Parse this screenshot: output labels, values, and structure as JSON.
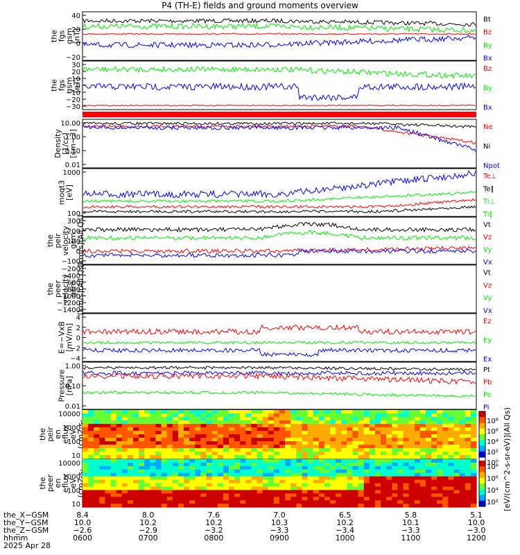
{
  "title": "P4 (TH-E) fields and ground moments overview",
  "colors": {
    "black": "#000000",
    "red": "#ff0000",
    "green": "#00ee00",
    "blue": "#0000ff"
  },
  "chart_data": [
    {
      "type": "line",
      "ylabel": [
        "the",
        "fgs",
        "gsm",
        "[nT]"
      ],
      "yticks": [
        "40",
        "20",
        "0",
        "−20"
      ],
      "series": [
        {
          "name": "Bt",
          "color": "black"
        },
        {
          "name": "Bz",
          "color": "red"
        },
        {
          "name": "By",
          "color": "green"
        },
        {
          "name": "Bx",
          "color": "blue"
        }
      ]
    },
    {
      "type": "line",
      "ylabel": [
        "the",
        "fgs",
        "gsm",
        "[nT]"
      ],
      "yticks": [
        "30",
        "20",
        "10",
        "0",
        "−10",
        "−20",
        "−30"
      ],
      "series": [
        {
          "name": "Bz",
          "color": "red"
        },
        {
          "name": "By",
          "color": "green"
        },
        {
          "name": "Bx",
          "color": "blue"
        }
      ]
    },
    {
      "type": "line",
      "scale": "log",
      "ylabel": [
        "Density",
        "[1/cc]",
        "[cm−3]"
      ],
      "yticks": [
        "10.00",
        "1.00",
        "0.10",
        "0.01"
      ],
      "series": [
        {
          "name": "Ne",
          "color": "red"
        },
        {
          "name": "Ni",
          "color": "black"
        },
        {
          "name": "Npot",
          "color": "blue"
        }
      ]
    },
    {
      "type": "line",
      "scale": "log",
      "ylabel": [
        "moqt3",
        "[eV]"
      ],
      "yticks": [
        "1000",
        "100"
      ],
      "series": [
        {
          "name": "Te⊥",
          "color": "red"
        },
        {
          "name": "Te∥",
          "color": "black"
        },
        {
          "name": "Ti⊥",
          "color": "green"
        },
        {
          "name": "Ti∥",
          "color": "green"
        }
      ]
    },
    {
      "type": "line",
      "ylabel": [
        "the",
        "peir",
        "velocity",
        "gsm",
        "[km/s](All Qs)"
      ],
      "yticks": [
        "300",
        "200",
        "100",
        "0",
        "−100"
      ],
      "series": [
        {
          "name": "Vt",
          "color": "black"
        },
        {
          "name": "Vz",
          "color": "red"
        },
        {
          "name": "Vy",
          "color": "green"
        },
        {
          "name": "Vx",
          "color": "blue"
        }
      ]
    },
    {
      "type": "line",
      "ylabel": [
        "the",
        "peer",
        "velocity",
        "gsm",
        "[km/s](All Qs)"
      ],
      "yticks": [
        "−200",
        "−400",
        "−600",
        "−800",
        "−1000",
        "−1200",
        "−1400"
      ],
      "series": [
        {
          "name": "Vt",
          "color": "black"
        },
        {
          "name": "Vz",
          "color": "red"
        },
        {
          "name": "Vy",
          "color": "green"
        },
        {
          "name": "Vx",
          "color": "blue"
        }
      ]
    },
    {
      "type": "line",
      "ylabel": [
        "E=−VxB",
        "[mV/m]"
      ],
      "yticks": [
        "4",
        "2",
        "0",
        "−2",
        "−4"
      ],
      "series": [
        {
          "name": "Ez",
          "color": "red"
        },
        {
          "name": "Ey",
          "color": "green"
        },
        {
          "name": "Ex",
          "color": "blue"
        }
      ]
    },
    {
      "type": "line",
      "scale": "log",
      "ylabel": [
        "Pressure",
        "[nPa]"
      ],
      "yticks": [
        "1.00",
        "0.10",
        "0.01"
      ],
      "series": [
        {
          "name": "Pt",
          "color": "black"
        },
        {
          "name": "Pb",
          "color": "red"
        },
        {
          "name": "Pe",
          "color": "green"
        },
        {
          "name": "Pi",
          "color": "blue"
        }
      ]
    },
    {
      "type": "heatmap",
      "ylabel": [
        "the",
        "peir",
        "en",
        "eflux",
        "eV",
        "(cm2-s-",
        "sr-eV)"
      ],
      "yticks": [
        "10000",
        "1000",
        "100",
        "10"
      ]
    },
    {
      "type": "heatmap",
      "ylabel": [
        "the",
        "peer",
        "en",
        "eflux",
        "eV",
        "(cm2-s-",
        "sr-eV)"
      ],
      "yticks": [
        "10000",
        "1000",
        "100",
        "10"
      ]
    }
  ],
  "colorbar": {
    "label": "[eV/(cm^2-s-sr-eV)](All Qs)",
    "ticks_top": [
      "10⁸",
      "10⁶",
      "10⁴",
      "10²",
      "10⁰"
    ],
    "ticks_bottom": [
      "10⁸",
      "10⁶",
      "10⁴",
      "10²"
    ]
  },
  "xaxis": {
    "rows": [
      {
        "label": "the_X−GSM",
        "values": [
          "8.4",
          "8.0",
          "7.6",
          "7.0",
          "6.5",
          "5.8",
          "5.1"
        ]
      },
      {
        "label": "the_Y−GSM",
        "values": [
          "10.0",
          "10.2",
          "10.2",
          "10.3",
          "10.2",
          "10.1",
          "10.0"
        ]
      },
      {
        "label": "the_Z−GSM",
        "values": [
          "−2.6",
          "−2.9",
          "−3.2",
          "−3.3",
          "−3.4",
          "−3.3",
          "−3.0"
        ]
      },
      {
        "label": "hhmm",
        "values": [
          "0600",
          "0700",
          "0800",
          "0900",
          "1000",
          "1100",
          "1200"
        ]
      }
    ],
    "date": "2025 Apr 28"
  }
}
